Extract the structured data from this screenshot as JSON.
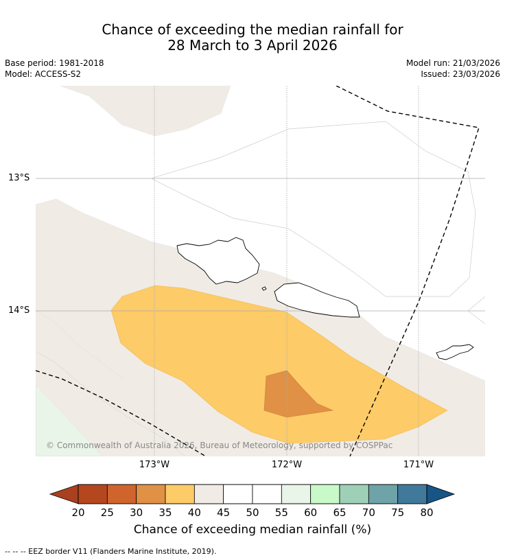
{
  "title": {
    "line1": "Chance of exceeding the median rainfall for",
    "line2": "28 March to 3 April 2026"
  },
  "meta": {
    "base_period": "Base period: 1981-2018",
    "model": "Model: ACCESS-S2",
    "model_run": "Model run: 21/03/2026",
    "issued": "Issued: 23/03/2026"
  },
  "map": {
    "lat_labels": [
      "13°S",
      "14°S"
    ],
    "lon_labels": [
      "173°W",
      "172°W",
      "171°W"
    ],
    "copyright": "© Commonwealth of Australia 2026, Bureau of Meteorology, supported by COSPPac"
  },
  "colorbar": {
    "ticks": [
      "20",
      "25",
      "30",
      "35",
      "40",
      "45",
      "50",
      "55",
      "60",
      "65",
      "70",
      "75",
      "80"
    ],
    "colors": [
      "#a9401f",
      "#b5471f",
      "#d0642d",
      "#e09145",
      "#fdcb67",
      "#f0ebe5",
      "#ffffff",
      "#ffffff",
      "#e9f5e9",
      "#c9f8c9",
      "#9ecfb7",
      "#6ea3a8",
      "#41799a",
      "#175586"
    ],
    "label": "Chance of exceeding median rainfall (%)"
  },
  "footnote": "--  --  -- EEZ border V11 (Flanders Marine Institute, 2019)."
}
